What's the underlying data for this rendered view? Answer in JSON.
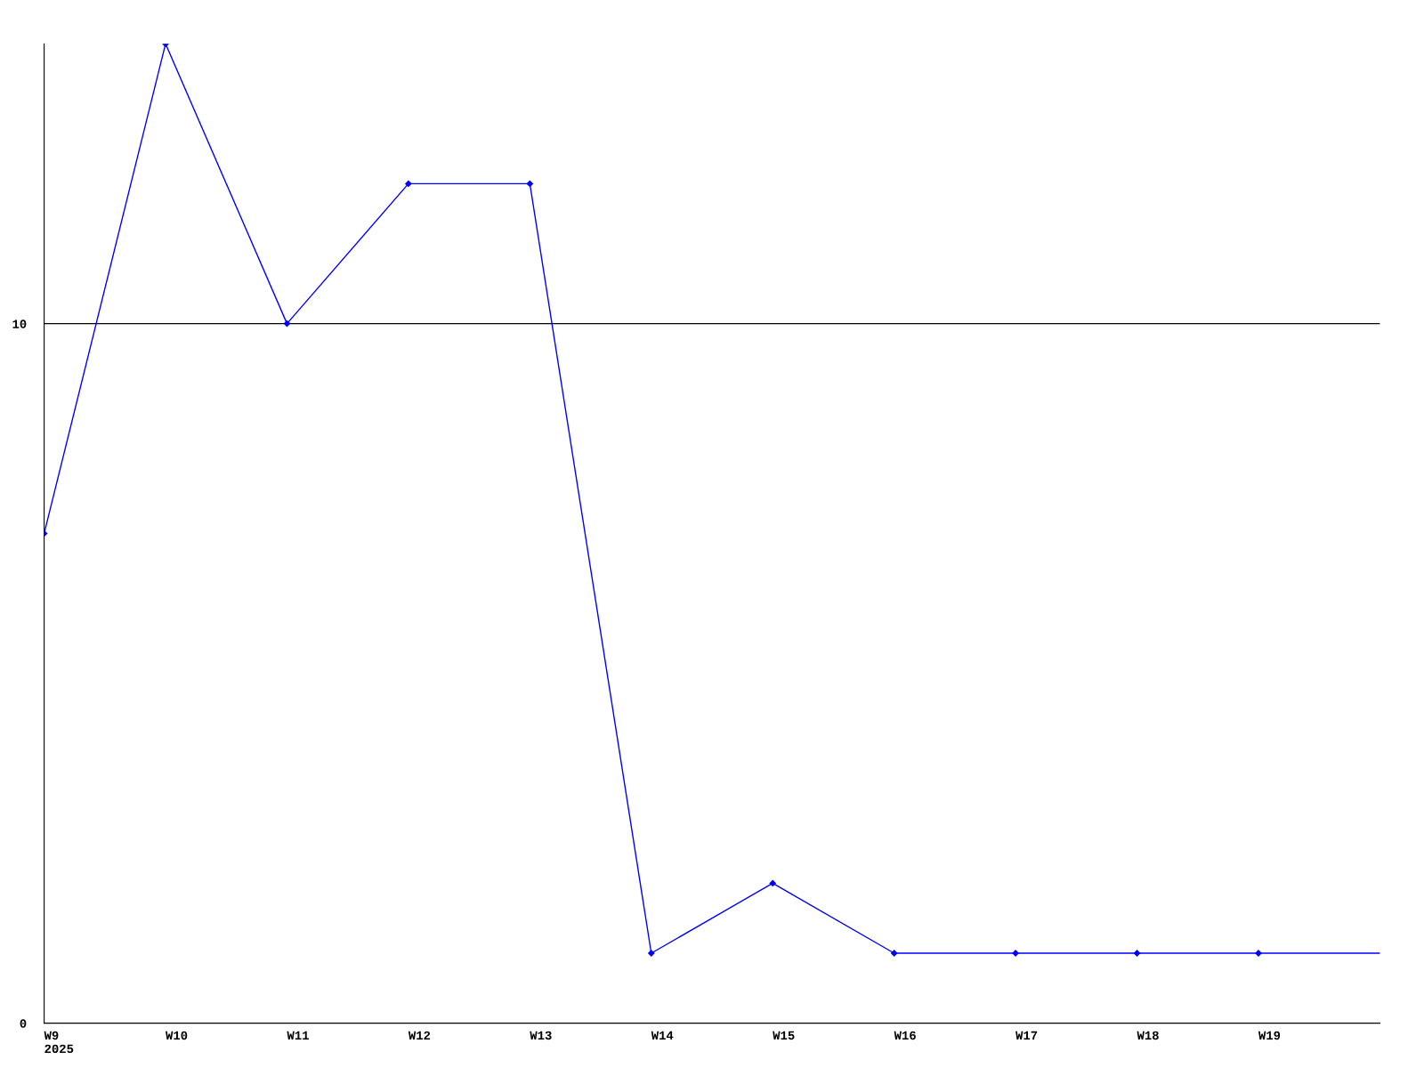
{
  "chart_data": {
    "type": "line",
    "categories": [
      "W9\n2025",
      "W10",
      "W11",
      "W12",
      "W13",
      "W14",
      "W15",
      "W16",
      "W17",
      "W18",
      "W19",
      null
    ],
    "series": [
      {
        "color": "#0000ff",
        "values": [
          7,
          14,
          10,
          12,
          12,
          1,
          2,
          1,
          1,
          1,
          1,
          1
        ]
      }
    ],
    "ylim": [
      0,
      14
    ],
    "yticks": [
      0,
      10
    ],
    "grid": "y",
    "marker": "diamond",
    "line_style": "solid"
  }
}
